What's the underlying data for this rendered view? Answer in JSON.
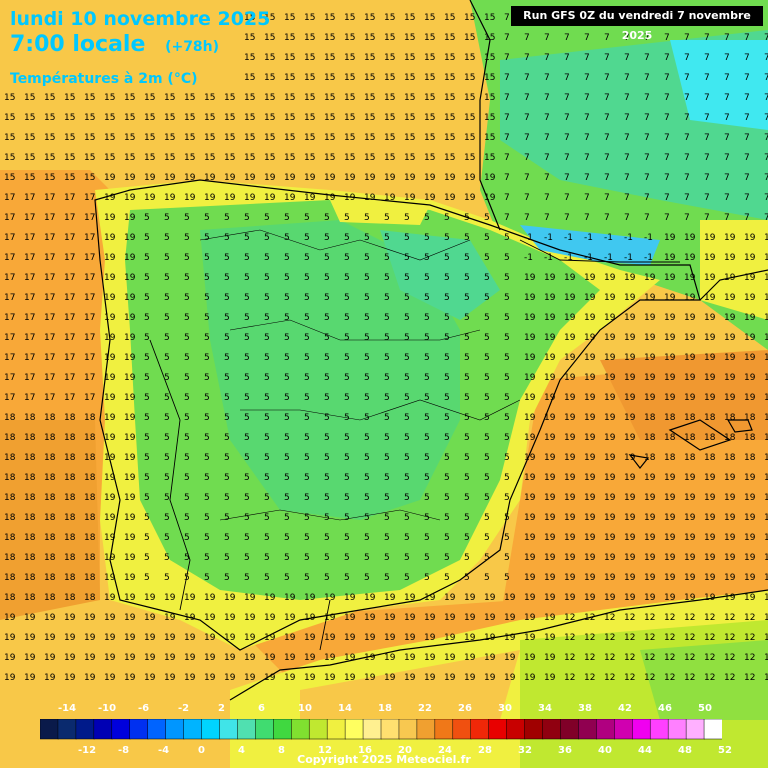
{
  "header": {
    "date_line": "lundi 10 novembre 2025",
    "time_line": "7:00 locale",
    "lead_time": "(+78h)",
    "variable": "Températures à 2m (°C)",
    "run_info": "Run GFS 0Z du vendredi 7 novembre 2025"
  },
  "legend": {
    "top_labels": [
      "-14",
      "-10",
      "-6",
      "-2",
      "2",
      "6",
      "10",
      "14",
      "18",
      "22",
      "26",
      "30",
      "34",
      "38",
      "42",
      "46",
      "50"
    ],
    "bottom_labels": [
      "-12",
      "-8",
      "-4",
      "0",
      "4",
      "8",
      "12",
      "16",
      "20",
      "24",
      "28",
      "32",
      "36",
      "40",
      "44",
      "48",
      "52"
    ],
    "colors": [
      "#0a1a4a",
      "#0a2a6e",
      "#001a8a",
      "#0000b4",
      "#0000dc",
      "#0030f0",
      "#0064ff",
      "#0096ff",
      "#00b4ff",
      "#00d4ff",
      "#40e4e8",
      "#50e0b0",
      "#40dc70",
      "#40d840",
      "#80e030",
      "#c0e830",
      "#f0f040",
      "#ffff60",
      "#fff090",
      "#ffe070",
      "#f8c850",
      "#f0a030",
      "#f07818",
      "#f05010",
      "#f02808",
      "#e80000",
      "#c80000",
      "#a00000",
      "#900010",
      "#800028",
      "#900050",
      "#b00080",
      "#d000b0",
      "#f000f0",
      "#ff40ff",
      "#ff80ff",
      "#ffb0ff",
      "#ffffff"
    ]
  },
  "map": {
    "sample_values": {
      "atlantic_nw": "15",
      "atlantic_w": "17",
      "atlantic_sw": "18",
      "france_s": "7",
      "pyrenees": "-1",
      "meseta": "5",
      "mediterranean": "19",
      "baleares": "18",
      "algeria": "12"
    },
    "colors": {
      "sea_warm": "#f8a838",
      "sea_mild": "#f8c848",
      "sea_cool": "#f8e060",
      "land_cool": "#70dc50",
      "land_cold": "#50d890",
      "mountain": "#40c8f0",
      "coast_yellow": "#f0f040"
    }
  },
  "footer": {
    "copyright": "Copyright 2025 Meteociel.fr"
  }
}
